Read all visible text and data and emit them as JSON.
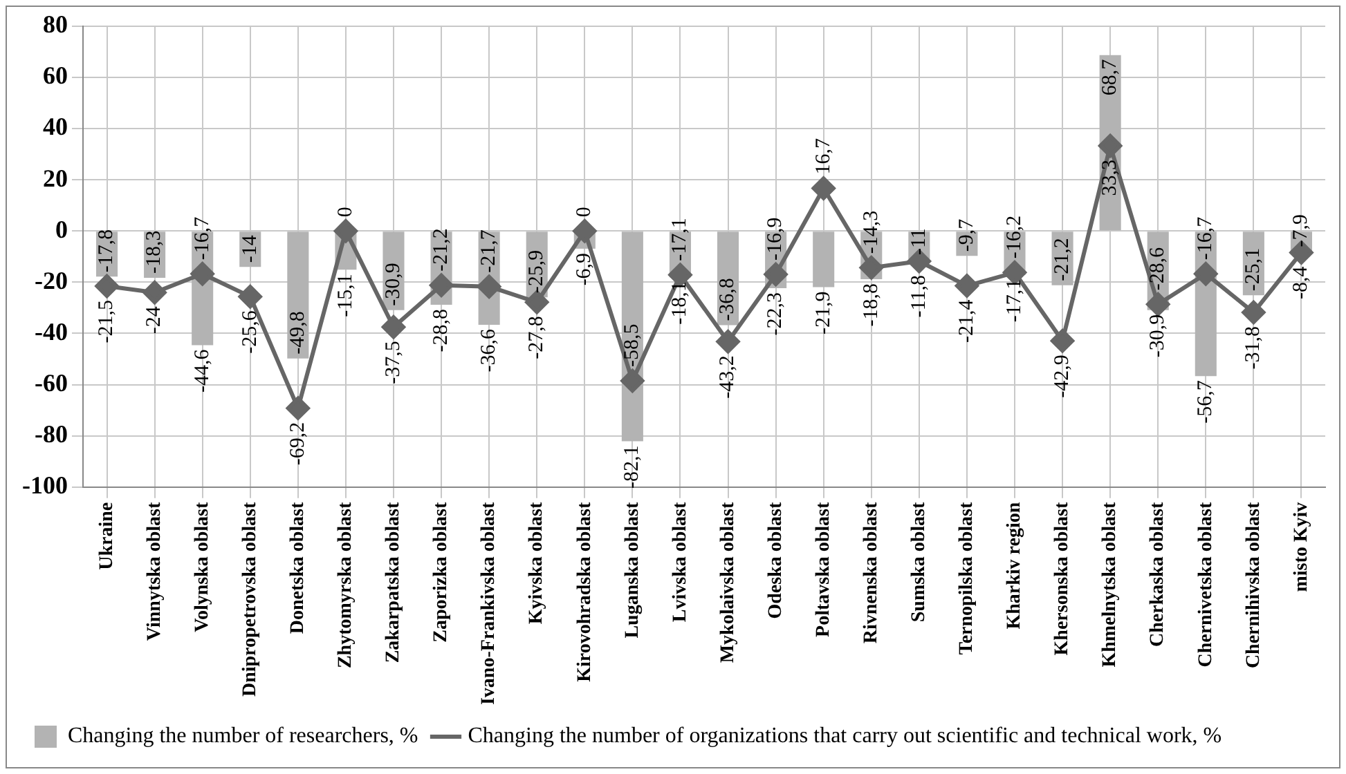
{
  "chart_data": {
    "type": "bar",
    "categories": [
      "Ukraine",
      "Vinnytska oblast",
      "Volynska oblast",
      "Dnipropetrovska oblast",
      "Donetska oblast",
      "Zhytomyrska oblast",
      "Zakarpatska oblast",
      "Zaporizka oblast",
      "Ivano-Frankivska oblast",
      "Kyivska oblast",
      "Kirovohradska oblast",
      "Luganska oblast",
      "Lvivska oblast",
      "Mykolaivska oblast",
      "Odeska oblast",
      "Poltavska oblast",
      "Rivnenska oblast",
      "Sumska oblast",
      "Ternopilska oblast",
      "Kharkiv region",
      "Khersonska oblast",
      "Khmelnytska oblast",
      "Cherkaska oblast",
      "Chernivetska oblast",
      "Chernihivska oblast",
      "misto Kyiv"
    ],
    "series": [
      {
        "name": "Changing the number of researchers, %",
        "color": "#b3b3b3",
        "values": [
          -17.8,
          -18.3,
          -44.6,
          -14,
          -49.8,
          -15.1,
          -30.9,
          -28.8,
          -36.6,
          -25.9,
          -6.9,
          -82.1,
          -18.1,
          -36.8,
          -22.3,
          -21.9,
          -18.8,
          -11,
          -9.7,
          -17.1,
          -21.2,
          68.7,
          -30.9,
          -56.7,
          -25.1,
          -7.9
        ],
        "value_labels": [
          "-17,8",
          "-18,3",
          "-44,6",
          "-14",
          "-49,8",
          "-15,1",
          "-30,9",
          "-28,8",
          "-36,6",
          "-25,9",
          "-6,9",
          "-82,1",
          "-18,1",
          "-36,8",
          "-22,3",
          "-21,9",
          "-18,8",
          "-11",
          "-9,7",
          "-17,1",
          "-21,2",
          "68,7",
          "-30,9",
          "-56,7",
          "-25,1",
          "-7,9"
        ]
      },
      {
        "name": "Changing the number of organizations that carry out scientific and technical work, %",
        "type": "line",
        "color": "#666666",
        "marker": "diamond",
        "values": [
          -21.5,
          -24,
          -16.7,
          -25.6,
          -69.2,
          0,
          -37.5,
          -21.2,
          -21.7,
          -27.8,
          0,
          -58.5,
          -17.1,
          -43.2,
          -16.9,
          16.7,
          -14.3,
          -11.8,
          -21.4,
          -16.2,
          -42.9,
          33.3,
          -28.6,
          -16.7,
          -31.8,
          -8.4
        ],
        "value_labels": [
          "-21,5",
          "-24",
          "-16,7",
          "-25,6",
          "-69,2",
          "0",
          "-37,5",
          "-21,2",
          "-21,7",
          "-27,8",
          "0",
          "-58,5",
          "-17,1",
          "-43,2",
          "-16,9",
          "16,7",
          "-14,3",
          "-11,8",
          "-21,4",
          "-16,2",
          "-42,9",
          "33,3",
          "-28,6",
          "-16,7",
          "-31,8",
          "-8,4"
        ]
      }
    ],
    "ylim": [
      -100,
      80
    ],
    "yticks": [
      -100,
      -80,
      -60,
      -40,
      -20,
      0,
      20,
      40,
      60,
      80
    ],
    "grid": true,
    "legend": "bottom"
  }
}
